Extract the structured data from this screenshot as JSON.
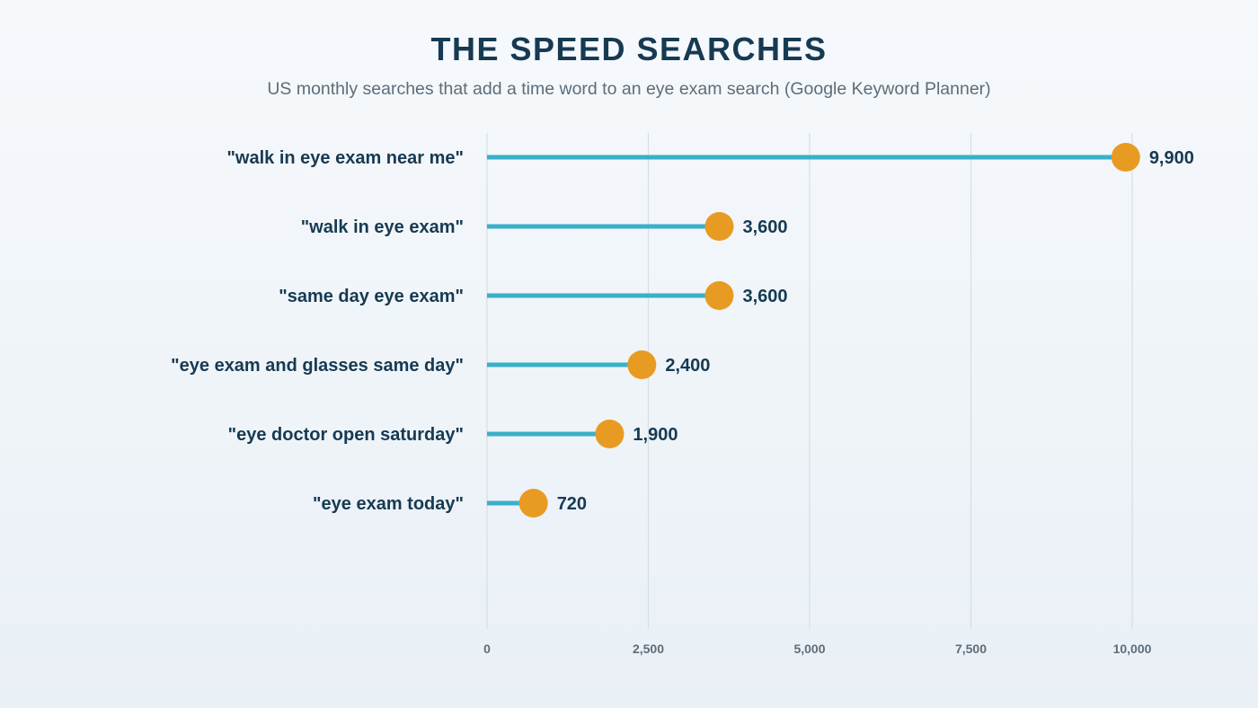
{
  "chart_data": {
    "type": "lollipop",
    "title": "THE SPEED SEARCHES",
    "subtitle": "US monthly searches that add a time word to an eye exam search (Google Keyword Planner)",
    "xlabel": "",
    "ylabel": "",
    "categories": [
      "\"walk in eye exam near me\"",
      "\"walk in eye exam\"",
      "\"same day eye exam\"",
      "\"eye exam and glasses same day\"",
      "\"eye doctor open saturday\"",
      "\"eye exam today\""
    ],
    "values": [
      9900,
      3600,
      3600,
      2400,
      1900,
      720
    ],
    "value_labels": [
      "9,900",
      "3,600",
      "3,600",
      "2,400",
      "1,900",
      "720"
    ],
    "xlim": [
      0,
      10000
    ],
    "x_ticks": [
      0,
      2500,
      5000,
      7500,
      10000
    ],
    "x_tick_labels": [
      "0",
      "2,500",
      "5,000",
      "7,500",
      "10,000"
    ],
    "grid": true,
    "legend": "none",
    "colors": {
      "stem": "#3aafc9",
      "dot": "#e89b22",
      "text": "#163a52",
      "muted": "#5d6d79",
      "grid": "#d6dee5"
    }
  }
}
